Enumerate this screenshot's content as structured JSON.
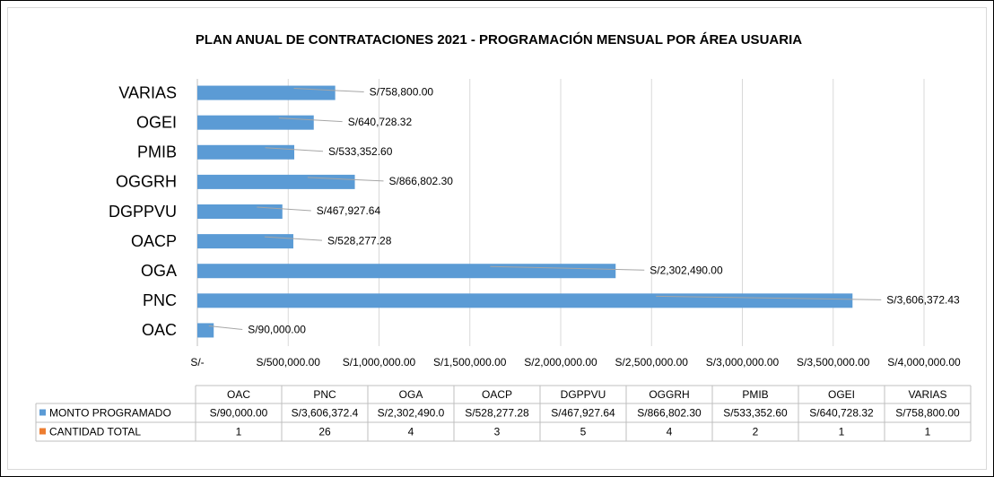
{
  "chart_data": {
    "type": "bar",
    "orientation": "horizontal",
    "title": "PLAN ANUAL DE CONTRATACIONES 2021 - PROGRAMACIÓN MENSUAL POR ÁREA USUARIA",
    "categories": [
      "OAC",
      "PNC",
      "OGA",
      "OACP",
      "DGPPVU",
      "OGGRH",
      "PMIB",
      "OGEI",
      "VARIAS"
    ],
    "series": [
      {
        "name": "MONTO PROGRAMADO",
        "color": "#5b9bd5",
        "values": [
          90000,
          3606372.43,
          2302490,
          528277.28,
          467927.64,
          866802.3,
          533352.6,
          640728.32,
          758800
        ],
        "value_labels": [
          "S/90,000.00",
          "S/3,606,372.43",
          "S/2,302,490.00",
          "S/528,277.28",
          "S/467,927.64",
          "S/866,802.30",
          "S/533,352.60",
          "S/640,728.32",
          "S/758,800.00"
        ],
        "table_labels": [
          "S/90,000.00",
          "S/3,606,372.4",
          "S/2,302,490.0",
          "S/528,277.28",
          "S/467,927.64",
          "S/866,802.30",
          "S/533,352.60",
          "S/640,728.32",
          "S/758,800.00"
        ]
      },
      {
        "name": "CANTIDAD TOTAL",
        "color": "#ed7d31",
        "values": [
          1,
          26,
          4,
          3,
          5,
          4,
          2,
          1,
          1
        ]
      }
    ],
    "xlim": [
      0,
      4000000
    ],
    "xticks": [
      {
        "value": 0,
        "label": "S/-"
      },
      {
        "value": 500000,
        "label": "S/500,000.00"
      },
      {
        "value": 1000000,
        "label": "S/1,000,000.00"
      },
      {
        "value": 1500000,
        "label": "S/1,500,000.00"
      },
      {
        "value": 2000000,
        "label": "S/2,000,000.00"
      },
      {
        "value": 2500000,
        "label": "S/2,500,000.00"
      },
      {
        "value": 3000000,
        "label": "S/3,000,000.00"
      },
      {
        "value": 3500000,
        "label": "S/3,500,000.00"
      },
      {
        "value": 4000000,
        "label": "S/4,000,000.00"
      }
    ],
    "grid": true
  }
}
